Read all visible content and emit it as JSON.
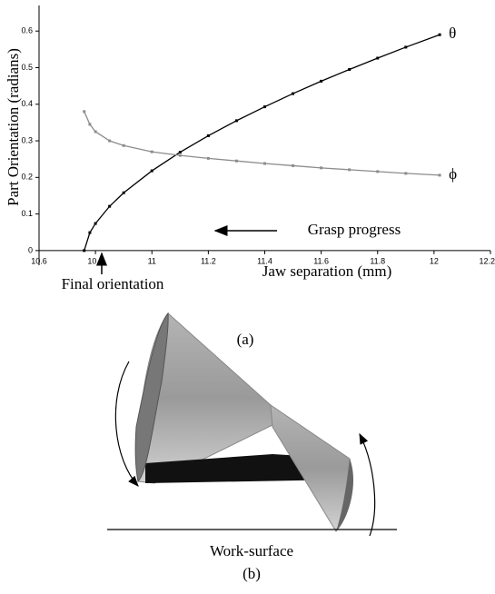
{
  "chart_data": {
    "type": "line",
    "label": "(a)",
    "xlabel": "Jaw separation (mm)",
    "ylabel": "Part Orientation (radians)",
    "x": [
      10.76,
      10.78,
      10.8,
      10.85,
      10.9,
      11.0,
      11.1,
      11.2,
      11.3,
      11.4,
      11.5,
      11.6,
      11.7,
      11.8,
      11.9,
      12.02
    ],
    "series": [
      {
        "name": "θ",
        "color": "#000000",
        "values": [
          0,
          0.049,
          0.074,
          0.121,
          0.158,
          0.218,
          0.269,
          0.314,
          0.355,
          0.393,
          0.429,
          0.463,
          0.495,
          0.526,
          0.556,
          0.59
        ]
      },
      {
        "name": "ϕ",
        "color": "#8c8c8c",
        "values": [
          0.38,
          0.345,
          0.325,
          0.3,
          0.287,
          0.27,
          0.26,
          0.252,
          0.245,
          0.238,
          0.232,
          0.226,
          0.221,
          0.216,
          0.211,
          0.206
        ]
      }
    ],
    "xlim": [
      10.6,
      12.2
    ],
    "ylim": [
      -0.04,
      0.67
    ],
    "xticks": [
      10.6,
      10.8,
      11,
      11.2,
      11.4,
      11.6,
      11.8,
      12,
      12.2
    ],
    "yticks": [
      0,
      0.1,
      0.2,
      0.3,
      0.4,
      0.5,
      0.6
    ],
    "annotations": [
      "Grasp progress",
      "Final orientation"
    ]
  },
  "figure_b": {
    "label": "(b)",
    "surface_label": "Work-surface"
  }
}
